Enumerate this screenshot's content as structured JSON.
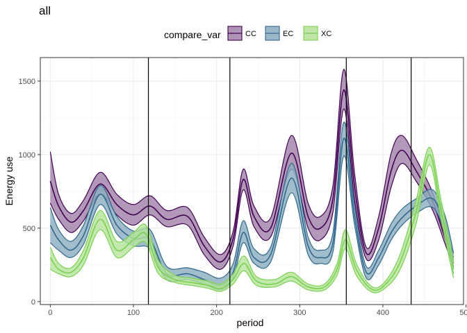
{
  "chart_data": {
    "type": "area",
    "title": "all",
    "xlabel": "period",
    "ylabel": "Energy use",
    "xlim": [
      -12,
      497
    ],
    "ylim": [
      -20,
      1660
    ],
    "xticks": [
      0,
      100,
      200,
      300,
      400,
      500
    ],
    "yticks": [
      0,
      500,
      1000,
      1500
    ],
    "grid": true,
    "legend": {
      "title": "compare_var",
      "position": "top",
      "entries": [
        "CC",
        "EC",
        "XC"
      ]
    },
    "vlines": [
      118,
      216,
      356,
      434
    ],
    "series": [
      {
        "name": "CC",
        "color": "#440154",
        "fill": "#9f80a8",
        "x": [
          0,
          10,
          25,
          40,
          60,
          80,
          100,
          120,
          140,
          165,
          185,
          205,
          220,
          232,
          245,
          265,
          290,
          310,
          325,
          340,
          353,
          366,
          380,
          395,
          410,
          423,
          440,
          460,
          475,
          485
        ],
        "mid": [
          820,
          650,
          540,
          620,
          800,
          660,
          590,
          650,
          560,
          580,
          380,
          270,
          430,
          830,
          580,
          500,
          1010,
          580,
          500,
          700,
          1440,
          780,
          330,
          500,
          890,
          1030,
          890,
          680,
          430,
          300
        ],
        "lower": [
          670,
          560,
          470,
          550,
          730,
          590,
          520,
          590,
          510,
          520,
          320,
          220,
          380,
          760,
          510,
          440,
          900,
          500,
          420,
          610,
          1310,
          690,
          290,
          420,
          780,
          940,
          820,
          620,
          390,
          240
        ],
        "upper": [
          1020,
          730,
          600,
          690,
          880,
          730,
          660,
          720,
          620,
          640,
          440,
          320,
          480,
          900,
          650,
          570,
          1130,
          670,
          580,
          790,
          1580,
          870,
          370,
          580,
          1010,
          1130,
          970,
          740,
          470,
          330
        ]
      },
      {
        "name": "EC",
        "color": "#31688e",
        "fill": "#8aacbf",
        "x": [
          0,
          10,
          25,
          40,
          60,
          80,
          100,
          120,
          140,
          165,
          185,
          205,
          220,
          232,
          245,
          265,
          290,
          310,
          325,
          340,
          353,
          366,
          380,
          395,
          410,
          423,
          440,
          460,
          475,
          485
        ],
        "mid": [
          520,
          420,
          350,
          450,
          730,
          520,
          430,
          420,
          190,
          190,
          150,
          110,
          200,
          470,
          300,
          320,
          840,
          380,
          300,
          400,
          1110,
          580,
          200,
          300,
          470,
          570,
          650,
          700,
          520,
          260
        ],
        "lower": [
          400,
          350,
          300,
          390,
          660,
          460,
          380,
          360,
          150,
          150,
          120,
          80,
          160,
          400,
          260,
          270,
          740,
          320,
          260,
          340,
          990,
          520,
          160,
          250,
          420,
          520,
          600,
          640,
          460,
          190
        ],
        "upper": [
          640,
          490,
          410,
          520,
          790,
          580,
          480,
          490,
          240,
          230,
          200,
          160,
          260,
          550,
          360,
          370,
          940,
          440,
          350,
          470,
          1220,
          650,
          240,
          350,
          530,
          630,
          700,
          760,
          580,
          330
        ]
      },
      {
        "name": "XC",
        "color": "#7ad151",
        "fill": "#b5e39a",
        "x": [
          0,
          10,
          25,
          40,
          60,
          80,
          100,
          115,
          130,
          150,
          170,
          190,
          205,
          220,
          233,
          248,
          270,
          290,
          310,
          330,
          345,
          355,
          368,
          385,
          400,
          420,
          440,
          456,
          470,
          485
        ],
        "mid": [
          300,
          220,
          200,
          300,
          560,
          350,
          420,
          460,
          230,
          150,
          130,
          110,
          90,
          150,
          260,
          140,
          120,
          170,
          100,
          100,
          220,
          420,
          220,
          90,
          100,
          260,
          610,
          1000,
          620,
          220
        ],
        "lower": [
          220,
          190,
          170,
          250,
          490,
          300,
          370,
          400,
          190,
          130,
          110,
          90,
          70,
          120,
          210,
          110,
          100,
          140,
          80,
          80,
          180,
          360,
          180,
          70,
          80,
          210,
          530,
          930,
          560,
          160
        ],
        "upper": [
          370,
          260,
          230,
          350,
          620,
          410,
          470,
          520,
          280,
          180,
          160,
          140,
          120,
          190,
          310,
          170,
          150,
          200,
          120,
          120,
          260,
          490,
          260,
          110,
          120,
          310,
          690,
          1050,
          690,
          280
        ]
      }
    ]
  }
}
